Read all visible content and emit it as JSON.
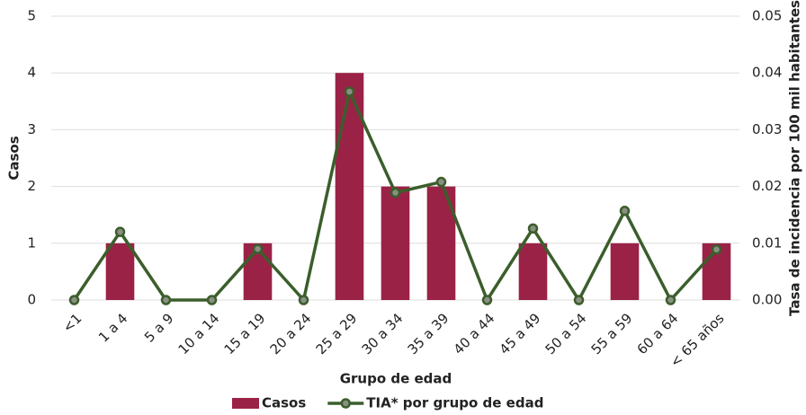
{
  "chart_data": {
    "type": "bar_line",
    "x_label": "Grupo de edad",
    "y_label": "Casos",
    "y2_label": "Tasa de incidencia por 100 mil habitantes",
    "categories": [
      "<1",
      "1 a 4",
      "5 a 9",
      "10 a 14",
      "15 a 19",
      "20 a 24",
      "25 a 29",
      "30 a 34",
      "35 a 39",
      "40 a 44",
      "45 a 49",
      "50 a 54",
      "55 a 59",
      "60 a 64",
      "< 65 años"
    ],
    "series": [
      {
        "name": "Casos",
        "type": "bar",
        "color": "#9b2247",
        "values": [
          0,
          1,
          0,
          0,
          1,
          0,
          4,
          2,
          2,
          0,
          1,
          0,
          1,
          0,
          1
        ]
      },
      {
        "name": "TIA* por grupo de edad",
        "type": "line",
        "axis": "y2",
        "color": "#3b5e2b",
        "values": [
          0,
          0.012,
          0,
          0,
          0.009,
          0,
          0.0367,
          0.0189,
          0.0208,
          0,
          0.0126,
          0,
          0.0157,
          0,
          0.0089
        ]
      }
    ],
    "ylim": [
      0,
      5
    ],
    "yticks": [
      0,
      1,
      2,
      3,
      4,
      5
    ],
    "y2lim": [
      0,
      0.05
    ],
    "y2ticks": [
      {
        "value": 0,
        "label": "0.00"
      },
      0.01,
      0.02,
      0.03,
      0.04,
      0.05
    ],
    "grid": true,
    "legend": "bottom"
  }
}
